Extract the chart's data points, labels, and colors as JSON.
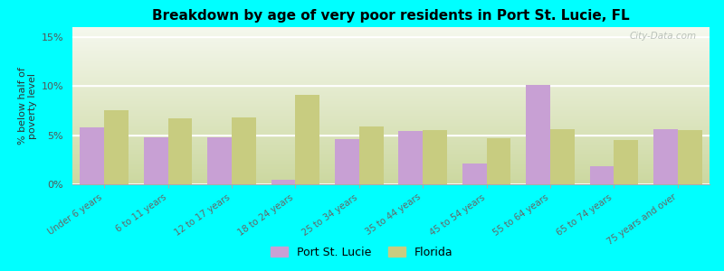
{
  "title": "Breakdown by age of very poor residents in Port St. Lucie, FL",
  "categories": [
    "Under 6 years",
    "6 to 11 years",
    "12 to 17 years",
    "18 to 24 years",
    "25 to 34 years",
    "35 to 44 years",
    "45 to 54 years",
    "55 to 64 years",
    "65 to 74 years",
    "75 years and over"
  ],
  "port_st_lucie": [
    5.8,
    4.8,
    4.8,
    0.5,
    4.6,
    5.4,
    2.1,
    10.1,
    1.8,
    5.6
  ],
  "florida": [
    7.5,
    6.7,
    6.8,
    9.1,
    5.9,
    5.5,
    4.7,
    5.6,
    4.5,
    5.5
  ],
  "bar_color_city": "#c8a0d4",
  "bar_color_state": "#c8cc80",
  "background_color": "#00ffff",
  "ylabel": "% below half of\npoverty level",
  "ylim": [
    0,
    16
  ],
  "yticks": [
    0,
    5,
    10,
    15
  ],
  "ytick_labels": [
    "0%",
    "5%",
    "10%",
    "15%"
  ],
  "legend_city": "Port St. Lucie",
  "legend_state": "Florida",
  "watermark": "City-Data.com"
}
